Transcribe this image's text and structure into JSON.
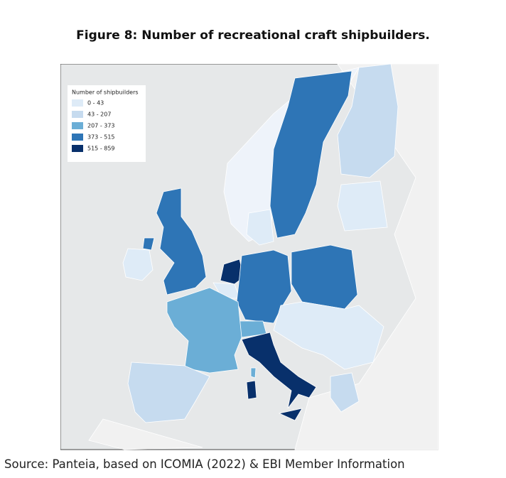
{
  "header": {
    "title": "Figure 8: Number of recreational craft shipbuilders."
  },
  "legend": {
    "title": "Number of shipbuilders",
    "entries": [
      {
        "label": "0 - 43",
        "color": "#deebf7"
      },
      {
        "label": "43 - 207",
        "color": "#c6dbef"
      },
      {
        "label": "207 - 373",
        "color": "#6baed6"
      },
      {
        "label": "373 - 515",
        "color": "#2e75b6"
      },
      {
        "label": "515 - 859",
        "color": "#08306b"
      }
    ]
  },
  "footer": {
    "source": "Source: Panteia, based on ICOMIA (2022) & EBI Member Information"
  }
}
